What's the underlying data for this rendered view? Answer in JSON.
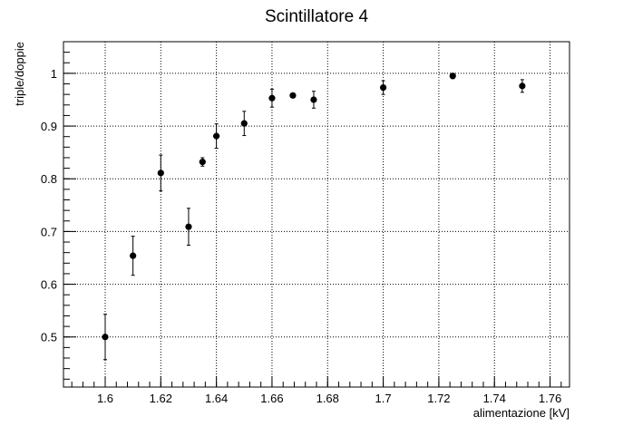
{
  "chart_data": {
    "type": "scatter",
    "title": "Scintillatore 4",
    "xlabel": "alimentazione [kV]",
    "ylabel": "triple/doppie",
    "xlim": [
      1.585,
      1.767
    ],
    "ylim": [
      0.405,
      1.06
    ],
    "x_ticks": [
      1.6,
      1.62,
      1.64,
      1.66,
      1.68,
      1.7,
      1.72,
      1.74,
      1.76
    ],
    "x_tick_labels": [
      "1.6",
      "1.62",
      "1.64",
      "1.66",
      "1.68",
      "1.7",
      "1.72",
      "1.74",
      "1.76"
    ],
    "y_ticks": [
      0.5,
      0.6,
      0.7,
      0.8,
      0.9,
      1.0
    ],
    "y_tick_labels": [
      "0.5",
      "0.6",
      "0.7",
      "0.8",
      "0.9",
      "1"
    ],
    "grid": true,
    "marker_color": "#000000",
    "points": [
      {
        "x": 1.6,
        "y": 0.5,
        "err": 0.043
      },
      {
        "x": 1.61,
        "y": 0.654,
        "err": 0.037
      },
      {
        "x": 1.62,
        "y": 0.811,
        "err": 0.034
      },
      {
        "x": 1.63,
        "y": 0.709,
        "err": 0.035
      },
      {
        "x": 1.635,
        "y": 0.832,
        "err": 0.008
      },
      {
        "x": 1.64,
        "y": 0.881,
        "err": 0.023
      },
      {
        "x": 1.65,
        "y": 0.905,
        "err": 0.023
      },
      {
        "x": 1.66,
        "y": 0.953,
        "err": 0.017
      },
      {
        "x": 1.6675,
        "y": 0.958,
        "err": 0.004
      },
      {
        "x": 1.675,
        "y": 0.95,
        "err": 0.016
      },
      {
        "x": 1.7,
        "y": 0.973,
        "err": 0.013
      },
      {
        "x": 1.725,
        "y": 0.995,
        "err": 0.005
      },
      {
        "x": 1.75,
        "y": 0.976,
        "err": 0.012
      }
    ]
  }
}
